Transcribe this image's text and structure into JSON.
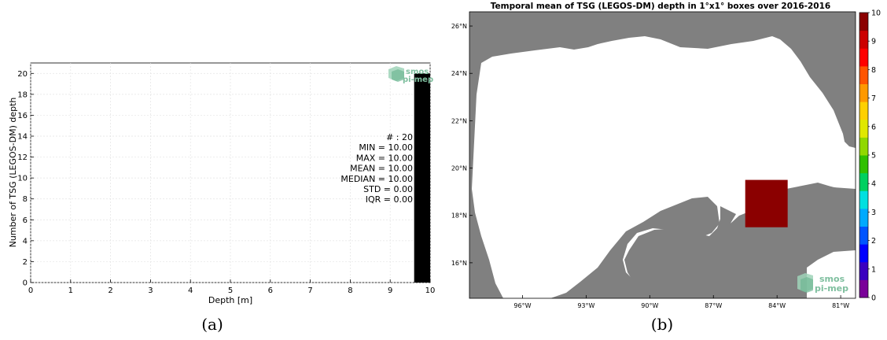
{
  "chart_data": [
    {
      "type": "bar",
      "panel_label": "(a)",
      "xlabel": "Depth [m]",
      "ylabel": "Number of TSG (LEGOS-DM) depth",
      "xlim": [
        0,
        10
      ],
      "ylim": [
        0,
        21
      ],
      "xticks": [
        0,
        1,
        2,
        3,
        4,
        5,
        6,
        7,
        8,
        9,
        10
      ],
      "yticks": [
        0,
        2,
        4,
        6,
        8,
        10,
        12,
        14,
        16,
        18,
        20
      ],
      "grid": true,
      "bars": [
        {
          "x_start": 9.6,
          "x_end": 10.0,
          "value": 20
        }
      ],
      "bar_color": "#000000",
      "stats": [
        "# : 20",
        "MIN = 10.00",
        "MAX =  10.00",
        "MEAN = 10.00",
        "MEDIAN = 10.00",
        "STD = 0.00",
        "IQR = 0.00"
      ],
      "logo": {
        "line1": "smos",
        "line2": "pi-mep",
        "color": "#7fbf9f"
      }
    },
    {
      "type": "heatmap",
      "panel_label": "(b)",
      "title": "Temporal mean of TSG (LEGOS-DM) depth in 1°x1° boxes over 2016-2016",
      "lon_range": [
        -98.5,
        -80.3
      ],
      "lat_range": [
        14.5,
        26.6
      ],
      "lon_ticks": [
        {
          "value": -96,
          "label": "96°W"
        },
        {
          "value": -93,
          "label": "93°W"
        },
        {
          "value": -90,
          "label": "90°W"
        },
        {
          "value": -87,
          "label": "87°W"
        },
        {
          "value": -84,
          "label": "84°W"
        },
        {
          "value": -81,
          "label": "81°W"
        }
      ],
      "lat_ticks": [
        {
          "value": 16,
          "label": "16°N"
        },
        {
          "value": 18,
          "label": "18°N"
        },
        {
          "value": 20,
          "label": "20°N"
        },
        {
          "value": 22,
          "label": "22°N"
        },
        {
          "value": 24,
          "label": "24°N"
        },
        {
          "value": 26,
          "label": "26°N"
        }
      ],
      "cells": [
        {
          "lon_min": -85.5,
          "lon_max": -83.5,
          "lat_min": 17.5,
          "lat_max": 19.5,
          "value": 10
        }
      ],
      "colorbar": {
        "min": 0,
        "max": 10,
        "ticks": [
          0,
          1,
          2,
          3,
          4,
          5,
          6,
          7,
          8,
          9,
          10
        ],
        "colors": [
          "#7a0099",
          "#3a00c0",
          "#0000ff",
          "#0055ff",
          "#00aaff",
          "#00e0e0",
          "#00d060",
          "#30c000",
          "#90d800",
          "#e0e800",
          "#ffd000",
          "#ff9900",
          "#ff5500",
          "#ff0000",
          "#cc0000",
          "#8b0000"
        ]
      },
      "land_color": "#808080",
      "logo": {
        "line1": "smos",
        "line2": "pi-mep",
        "color": "#7fbf9f"
      }
    }
  ]
}
